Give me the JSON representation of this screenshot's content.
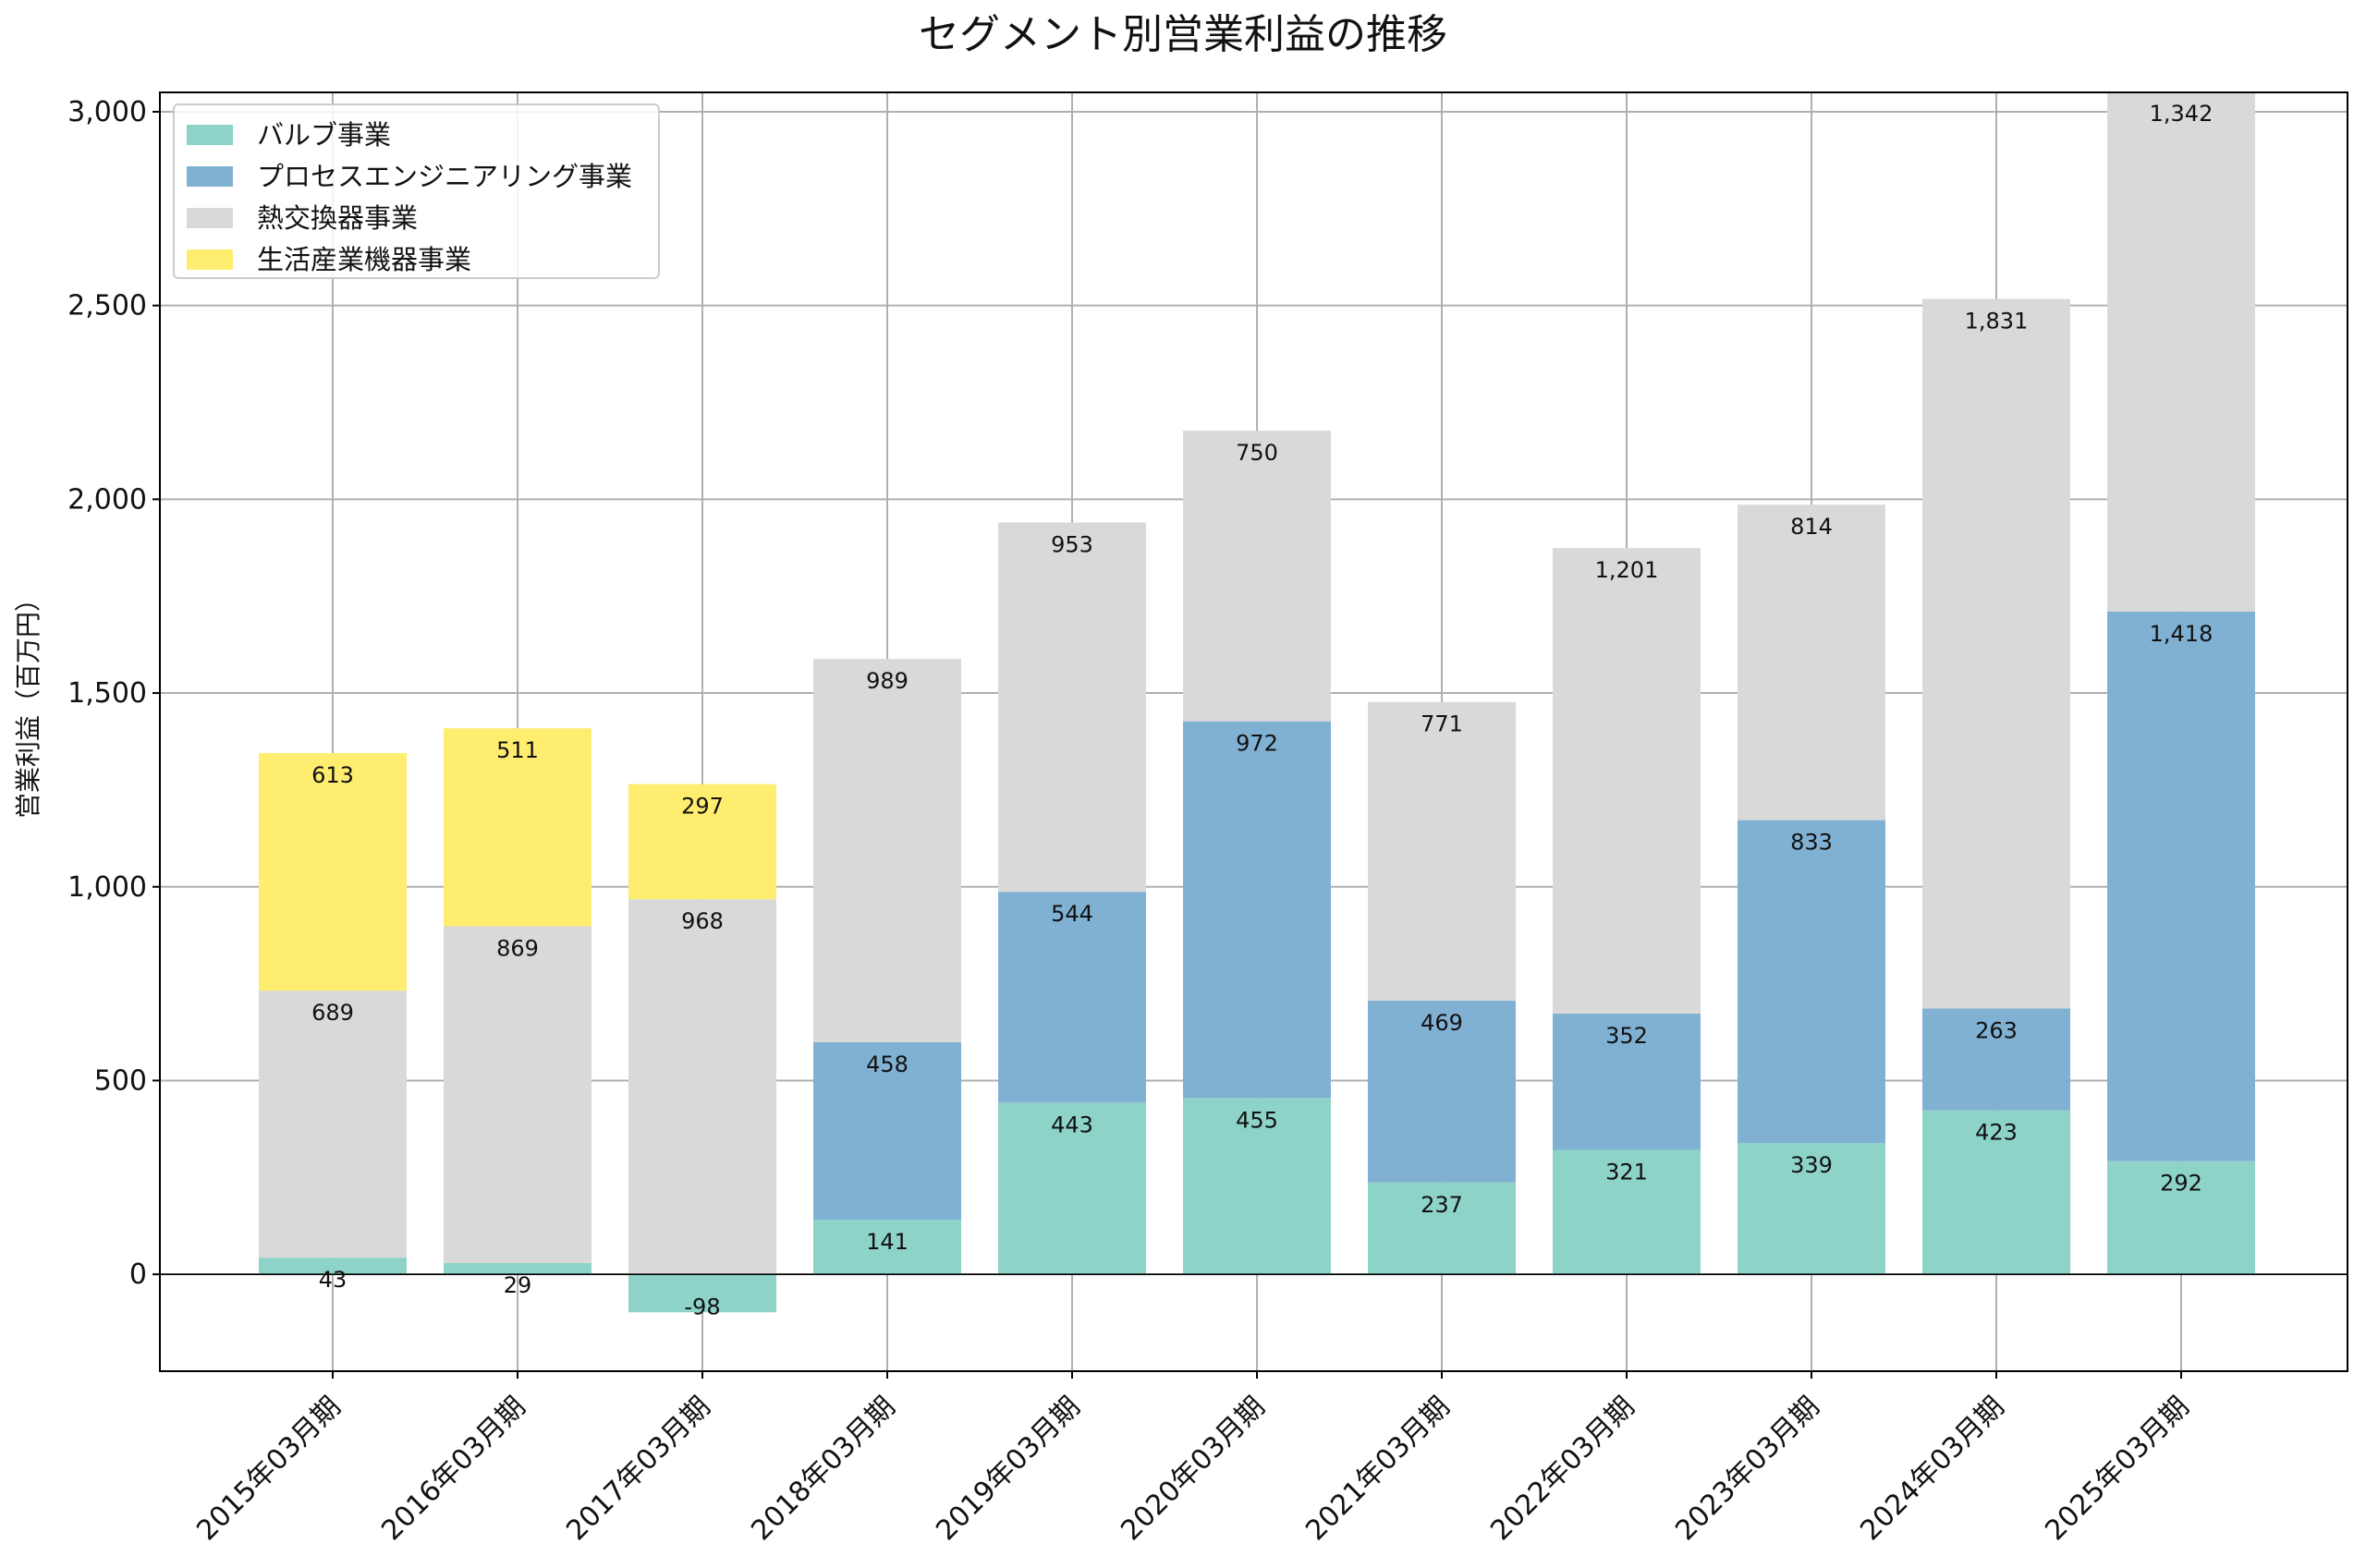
{
  "chart_data": {
    "type": "bar",
    "stacked": true,
    "title": "セグメント別営業利益の推移",
    "xlabel": "",
    "ylabel": "営業利益（百万円）",
    "ylim": [
      -250,
      3050
    ],
    "yticks": [
      0,
      500,
      1000,
      1500,
      2000,
      2500,
      3000
    ],
    "ytick_labels": [
      "0",
      "500",
      "1,000",
      "1,500",
      "2,000",
      "2,500",
      "3,000"
    ],
    "grid": true,
    "legend_position": "top-left",
    "categories": [
      "2015年03月期",
      "2016年03月期",
      "2017年03月期",
      "2018年03月期",
      "2019年03月期",
      "2020年03月期",
      "2021年03月期",
      "2022年03月期",
      "2023年03月期",
      "2024年03月期",
      "2025年03月期"
    ],
    "series": [
      {
        "name": "バルブ事業",
        "color": "#8dd3c7",
        "values": [
          43,
          29,
          -98,
          141,
          443,
          455,
          237,
          321,
          339,
          423,
          292
        ]
      },
      {
        "name": "プロセスエンジニアリング事業",
        "color": "#80b1d3",
        "values": [
          null,
          null,
          null,
          458,
          544,
          972,
          469,
          352,
          833,
          263,
          1418
        ]
      },
      {
        "name": "熱交換器事業",
        "color": "#d9d9d9",
        "values": [
          689,
          869,
          968,
          989,
          953,
          750,
          771,
          1201,
          814,
          1831,
          1342
        ]
      },
      {
        "name": "生活産業機器事業",
        "color": "#ffed6f",
        "values": [
          613,
          511,
          297,
          null,
          null,
          null,
          null,
          null,
          null,
          null,
          null
        ]
      }
    ]
  }
}
